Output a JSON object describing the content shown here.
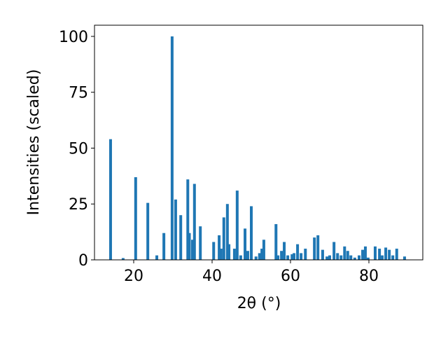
{
  "chart_data": {
    "type": "bar",
    "xlabel": "2θ (°)",
    "ylabel": "Intensities (scaled)",
    "x": [
      14.1,
      17.3,
      20.5,
      23.6,
      25.9,
      27.7,
      29.8,
      30.7,
      32.0,
      33.8,
      34.2,
      35.0,
      35.5,
      37.0,
      40.4,
      41.8,
      42.3,
      43.0,
      43.9,
      44.3,
      45.7,
      46.4,
      47.3,
      48.4,
      49.1,
      50.0,
      51.2,
      52.1,
      52.7,
      53.2,
      56.3,
      56.8,
      57.7,
      58.4,
      59.3,
      60.4,
      60.9,
      61.8,
      62.7,
      63.8,
      66.1,
      67.0,
      68.2,
      69.3,
      70.0,
      71.1,
      72.0,
      72.9,
      73.8,
      74.6,
      75.4,
      76.4,
      77.5,
      78.4,
      79.1,
      79.8,
      81.6,
      82.7,
      83.4,
      84.3,
      85.2,
      86.1,
      87.1,
      89.1
    ],
    "values": [
      54,
      0.8,
      37,
      25.5,
      2,
      12,
      100,
      27,
      20,
      36,
      12,
      9,
      34,
      15,
      8,
      11,
      5,
      19,
      25,
      7,
      5,
      31,
      2,
      14,
      4,
      24,
      1.5,
      3,
      5,
      9,
      16,
      2,
      4,
      8,
      2,
      2.5,
      3,
      7,
      3,
      5,
      10,
      11,
      4.5,
      1.5,
      2,
      8,
      3,
      2,
      6,
      4,
      2,
      1,
      2,
      4.5,
      6,
      1,
      6,
      5,
      2,
      5.5,
      4.5,
      2,
      5,
      1.5
    ],
    "color": "#1f77b4",
    "xlim": [
      10,
      93.75
    ],
    "ylim": [
      0,
      105
    ],
    "xticks": [
      20,
      40,
      60,
      80
    ],
    "yticks": [
      0,
      25,
      50,
      75,
      100
    ]
  }
}
